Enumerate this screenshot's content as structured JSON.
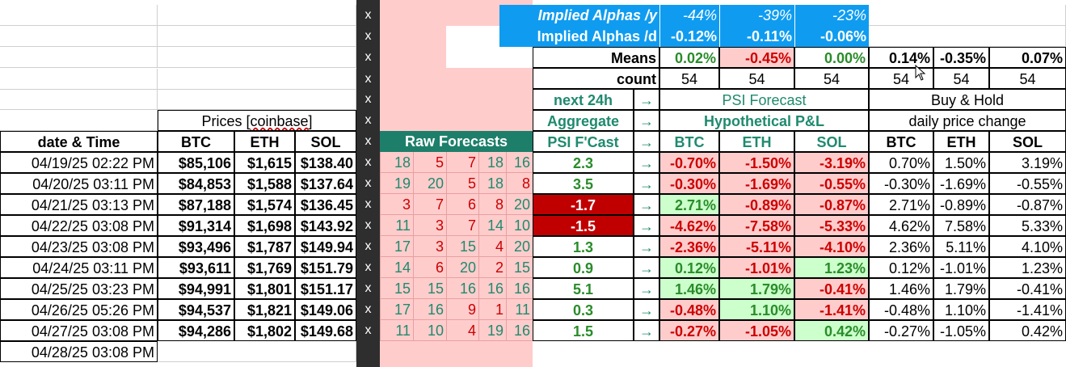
{
  "header": {
    "implied_y_label": "Implied Alphas /y",
    "implied_y": [
      "-44%",
      "-39%",
      "-23%"
    ],
    "implied_d_label": "Implied Alphas /d",
    "implied_d": [
      "-0.12%",
      "-0.11%",
      "-0.06%"
    ],
    "means_label": "Means",
    "means": [
      "0.02%",
      "-0.45%",
      "0.00%",
      "0.14%",
      "-0.35%",
      "0.07%"
    ],
    "count_label": "count",
    "count": [
      "54",
      "54",
      "54",
      "54",
      "54",
      "54"
    ],
    "next24h": "next 24h",
    "aggregate": "Aggregate",
    "psi_fcast": "PSI F'Cast",
    "arrow": "→",
    "psi_forecast": "PSI Forecast",
    "hypothetical": "Hypothetical P&L",
    "buy_hold": "Buy & Hold",
    "daily_change": "daily price change",
    "prices": "Prices [coinbase]",
    "prices_pre": "Prices [",
    "prices_word": "coinbase",
    "prices_post": "]",
    "raw_forecasts": "Raw Forecasts",
    "date_time": "date & Time",
    "cols": [
      "BTC",
      "ETH",
      "SOL"
    ],
    "x_mark": "x"
  },
  "rows": [
    {
      "date": "04/19/25 02:22 PM",
      "btc": "$85,106",
      "eth": "$1,615",
      "sol": "$138.40",
      "raw": [
        "18",
        "5",
        "7",
        "18",
        "16"
      ],
      "psi": "2.3",
      "pl": [
        "-0.70%",
        "-1.50%",
        "-3.19%"
      ],
      "bh": [
        "0.70%",
        "1.50%",
        "3.19%"
      ]
    },
    {
      "date": "04/20/25 03:11 PM",
      "btc": "$84,853",
      "eth": "$1,588",
      "sol": "$137.64",
      "raw": [
        "19",
        "20",
        "5",
        "18",
        "8"
      ],
      "psi": "3.5",
      "pl": [
        "-0.30%",
        "-1.69%",
        "-0.55%"
      ],
      "bh": [
        "-0.30%",
        "-1.69%",
        "-0.55%"
      ]
    },
    {
      "date": "04/21/25 03:13 PM",
      "btc": "$87,188",
      "eth": "$1,574",
      "sol": "$136.45",
      "raw": [
        "3",
        "7",
        "6",
        "8",
        "20"
      ],
      "psi": "-1.7",
      "pl": [
        "2.71%",
        "-0.89%",
        "-0.87%"
      ],
      "bh": [
        "2.71%",
        "-0.89%",
        "-0.87%"
      ]
    },
    {
      "date": "04/22/25 03:08 PM",
      "btc": "$91,314",
      "eth": "$1,698",
      "sol": "$143.92",
      "raw": [
        "11",
        "3",
        "7",
        "14",
        "10"
      ],
      "psi": "-1.5",
      "pl": [
        "-4.62%",
        "-7.58%",
        "-5.33%"
      ],
      "bh": [
        "4.62%",
        "7.58%",
        "5.33%"
      ]
    },
    {
      "date": "04/23/25 03:08 PM",
      "btc": "$93,496",
      "eth": "$1,787",
      "sol": "$149.94",
      "raw": [
        "17",
        "3",
        "15",
        "4",
        "20"
      ],
      "psi": "1.3",
      "pl": [
        "-2.36%",
        "-5.11%",
        "-4.10%"
      ],
      "bh": [
        "2.36%",
        "5.11%",
        "4.10%"
      ]
    },
    {
      "date": "04/24/25 03:11 PM",
      "btc": "$93,611",
      "eth": "$1,769",
      "sol": "$151.79",
      "raw": [
        "14",
        "6",
        "20",
        "2",
        "15"
      ],
      "psi": "0.9",
      "pl": [
        "0.12%",
        "-1.01%",
        "1.23%"
      ],
      "bh": [
        "0.12%",
        "-1.01%",
        "1.23%"
      ]
    },
    {
      "date": "04/25/25 03:23 PM",
      "btc": "$94,991",
      "eth": "$1,801",
      "sol": "$151.17",
      "raw": [
        "15",
        "15",
        "16",
        "16",
        "16"
      ],
      "psi": "5.1",
      "pl": [
        "1.46%",
        "1.79%",
        "-0.41%"
      ],
      "bh": [
        "1.46%",
        "1.79%",
        "-0.41%"
      ]
    },
    {
      "date": "04/26/25 05:26 PM",
      "btc": "$94,537",
      "eth": "$1,821",
      "sol": "$149.06",
      "raw": [
        "17",
        "16",
        "9",
        "1",
        "11"
      ],
      "psi": "0.3",
      "pl": [
        "-0.48%",
        "1.10%",
        "-1.41%"
      ],
      "bh": [
        "-0.48%",
        "1.10%",
        "-1.41%"
      ]
    },
    {
      "date": "04/27/25 03:08 PM",
      "btc": "$94,286",
      "eth": "$1,802",
      "sol": "$149.68",
      "raw": [
        "11",
        "10",
        "4",
        "19",
        "16"
      ],
      "psi": "1.5",
      "pl": [
        "-0.27%",
        "-1.05%",
        "0.42%"
      ],
      "bh": [
        "-0.27%",
        "-1.05%",
        "0.42%"
      ]
    },
    {
      "date": "04/28/25 03:08 PM"
    }
  ],
  "colors": {
    "positive": "#2a8c2a",
    "negative": "#cc0000",
    "teal_text": "#1f8a6e",
    "header_blue": "#0f9cf0",
    "raw_header": "#1d7f6a",
    "negative_forecast": "#c00000",
    "pink_fill": "#ffcccc",
    "green_fill": "#ccffcc",
    "x_column": "#2e2e2e"
  },
  "icons": {
    "cursor": "mouse-pointer-icon"
  }
}
